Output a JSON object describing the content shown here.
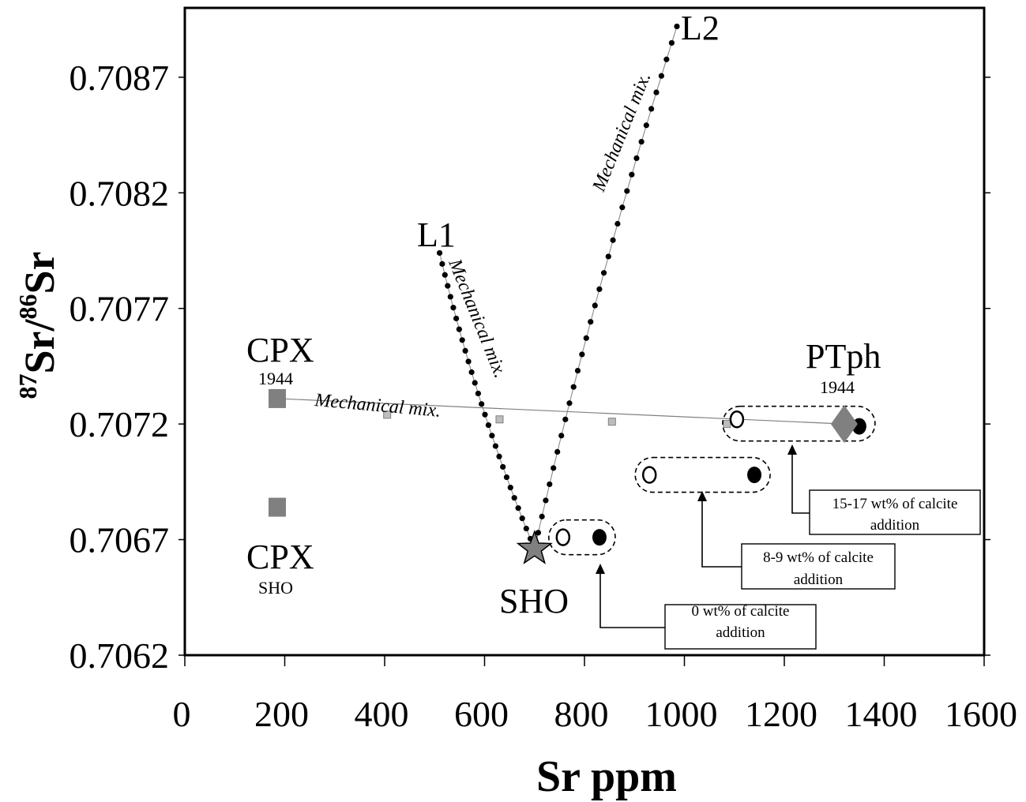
{
  "chart_data": {
    "type": "scatter",
    "xlabel": "Sr ppm",
    "ylabel_parts": [
      "87",
      "Sr/",
      "86",
      "Sr"
    ],
    "xlim": [
      0,
      1600
    ],
    "ylim": [
      0.7062,
      0.709
    ],
    "xticks": [
      0,
      200,
      400,
      600,
      800,
      1000,
      1200,
      1400,
      1600
    ],
    "xtick_labels": [
      "0",
      "200",
      "400",
      "600",
      "800",
      "1000",
      "1200",
      "1400",
      "1600"
    ],
    "yticks": [
      0.7062,
      0.7067,
      0.7072,
      0.7077,
      0.7082,
      0.7087
    ],
    "ytick_labels": [
      "0.7062",
      "0.7067",
      "0.7072",
      "0.7077",
      "0.7082",
      "0.7087"
    ],
    "grid": false,
    "endmembers": [
      {
        "label": "CPX",
        "sublabel": "1944",
        "x": 185,
        "y": 0.70731,
        "marker": "square",
        "color": "#808080"
      },
      {
        "label": "CPX",
        "sublabel": "SHO",
        "x": 185,
        "y": 0.70684,
        "marker": "square",
        "color": "#808080"
      },
      {
        "label": "SHO",
        "x": 700,
        "y": 0.70666,
        "marker": "star",
        "color": "#808080"
      },
      {
        "label": "PTph",
        "sublabel": "1944",
        "x": 1320,
        "y": 0.7072,
        "marker": "diamond",
        "color": "#808080"
      },
      {
        "label": "L1",
        "x": 510,
        "y": 0.70794
      },
      {
        "label": "L2",
        "x": 985,
        "y": 0.70892
      }
    ],
    "mixing_lines": [
      {
        "label": "Mechanical mix.",
        "from": [
          185,
          0.70731
        ],
        "to": [
          1320,
          0.7072
        ],
        "marks": [
          [
            405,
            0.70724
          ],
          [
            630,
            0.70722
          ],
          [
            855,
            0.70721
          ],
          [
            1085,
            0.7072
          ]
        ]
      },
      {
        "label": "Mechanical mix.",
        "from": [
          510,
          0.70794
        ],
        "to": [
          700,
          0.70666
        ],
        "dots": 28
      },
      {
        "label": "Mechanical mix.",
        "from": [
          700,
          0.70666
        ],
        "to": [
          985,
          0.70892
        ],
        "dots": 32
      }
    ],
    "calcite_groups": [
      {
        "label": "0 wt% of calcite addition",
        "open": [
          757,
          0.70671
        ],
        "filled": [
          830,
          0.70671
        ]
      },
      {
        "label": "8-9 wt% of calcite addition",
        "open": [
          930,
          0.70698
        ],
        "filled": [
          1140,
          0.70698
        ]
      },
      {
        "label": "15-17 wt% of calcite addition",
        "open": [
          1105,
          0.70722
        ],
        "filled": [
          1350,
          0.70719
        ]
      }
    ],
    "callouts": [
      {
        "lines": [
          "0 wt% of calcite",
          "addition"
        ]
      },
      {
        "lines": [
          "8-9 wt% of calcite",
          "addition"
        ]
      },
      {
        "lines": [
          "15-17 wt% of calcite",
          "addition"
        ]
      }
    ],
    "colors": {
      "endmember": "#808080",
      "line": "#808080",
      "dots": "#000000"
    }
  }
}
